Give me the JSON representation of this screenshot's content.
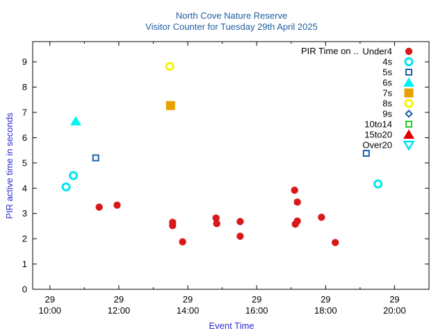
{
  "chart_data": {
    "type": "scatter",
    "title": "North Cove Nature Reserve",
    "subtitle": "Visitor Counter for Tuesday 29th April 2025",
    "xlabel": "Event Time",
    "ylabel": "PIR active time in seconds",
    "xlim": [
      9.5,
      21.0
    ],
    "ylim": [
      0,
      9.8
    ],
    "x_unit": "hours",
    "xticks": [
      {
        "value": 10,
        "day": "29",
        "time": "10:00"
      },
      {
        "value": 12,
        "day": "29",
        "time": "12:00"
      },
      {
        "value": 14,
        "day": "29",
        "time": "14:00"
      },
      {
        "value": 16,
        "day": "29",
        "time": "16:00"
      },
      {
        "value": 18,
        "day": "29",
        "time": "18:00"
      },
      {
        "value": 20,
        "day": "29",
        "time": "20:00"
      }
    ],
    "xminor": [
      11,
      13,
      15,
      17,
      19,
      21
    ],
    "yticks": [
      0,
      1,
      2,
      3,
      4,
      5,
      6,
      7,
      8,
      9
    ],
    "legend_title": "PIR Time on ..",
    "legend_position": "top-right",
    "series": [
      {
        "name": "Under4",
        "marker": "filled-circle",
        "color": "#d7191c",
        "points": [
          [
            11.43,
            3.25
          ],
          [
            11.95,
            3.33
          ],
          [
            13.56,
            2.65
          ],
          [
            13.56,
            2.52
          ],
          [
            13.85,
            1.88
          ],
          [
            14.82,
            2.82
          ],
          [
            14.84,
            2.6
          ],
          [
            15.52,
            2.68
          ],
          [
            15.52,
            2.1
          ],
          [
            17.1,
            3.92
          ],
          [
            17.18,
            3.45
          ],
          [
            17.12,
            2.58
          ],
          [
            17.18,
            2.7
          ],
          [
            17.88,
            2.85
          ],
          [
            18.28,
            1.85
          ]
        ]
      },
      {
        "name": "4s",
        "marker": "open-circle",
        "color": "#00e5f0",
        "points": [
          [
            10.47,
            4.05
          ],
          [
            10.68,
            4.5
          ],
          [
            19.52,
            4.17
          ]
        ]
      },
      {
        "name": "5s",
        "marker": "open-square",
        "color": "#1a5fa8",
        "points": [
          [
            11.33,
            5.2
          ],
          [
            19.18,
            5.38
          ]
        ]
      },
      {
        "name": "6s",
        "marker": "filled-triangle",
        "color": "#00f5f5",
        "points": [
          [
            10.75,
            6.65
          ]
        ]
      },
      {
        "name": "7s",
        "marker": "filled-square",
        "color": "#e8a000",
        "points": [
          [
            13.5,
            7.27
          ]
        ]
      },
      {
        "name": "8s",
        "marker": "open-circle",
        "color": "#f5f500",
        "points": [
          [
            13.48,
            8.82
          ]
        ]
      },
      {
        "name": "9s",
        "marker": "open-diamond",
        "color": "#1a5fa8",
        "points": []
      },
      {
        "name": "10to14",
        "marker": "open-square",
        "color": "#22cc22",
        "points": []
      },
      {
        "name": "15to20",
        "marker": "filled-triangle",
        "color": "#e00000",
        "points": []
      },
      {
        "name": "Over20",
        "marker": "open-triangle-down",
        "color": "#00e5f0",
        "points": []
      }
    ]
  }
}
